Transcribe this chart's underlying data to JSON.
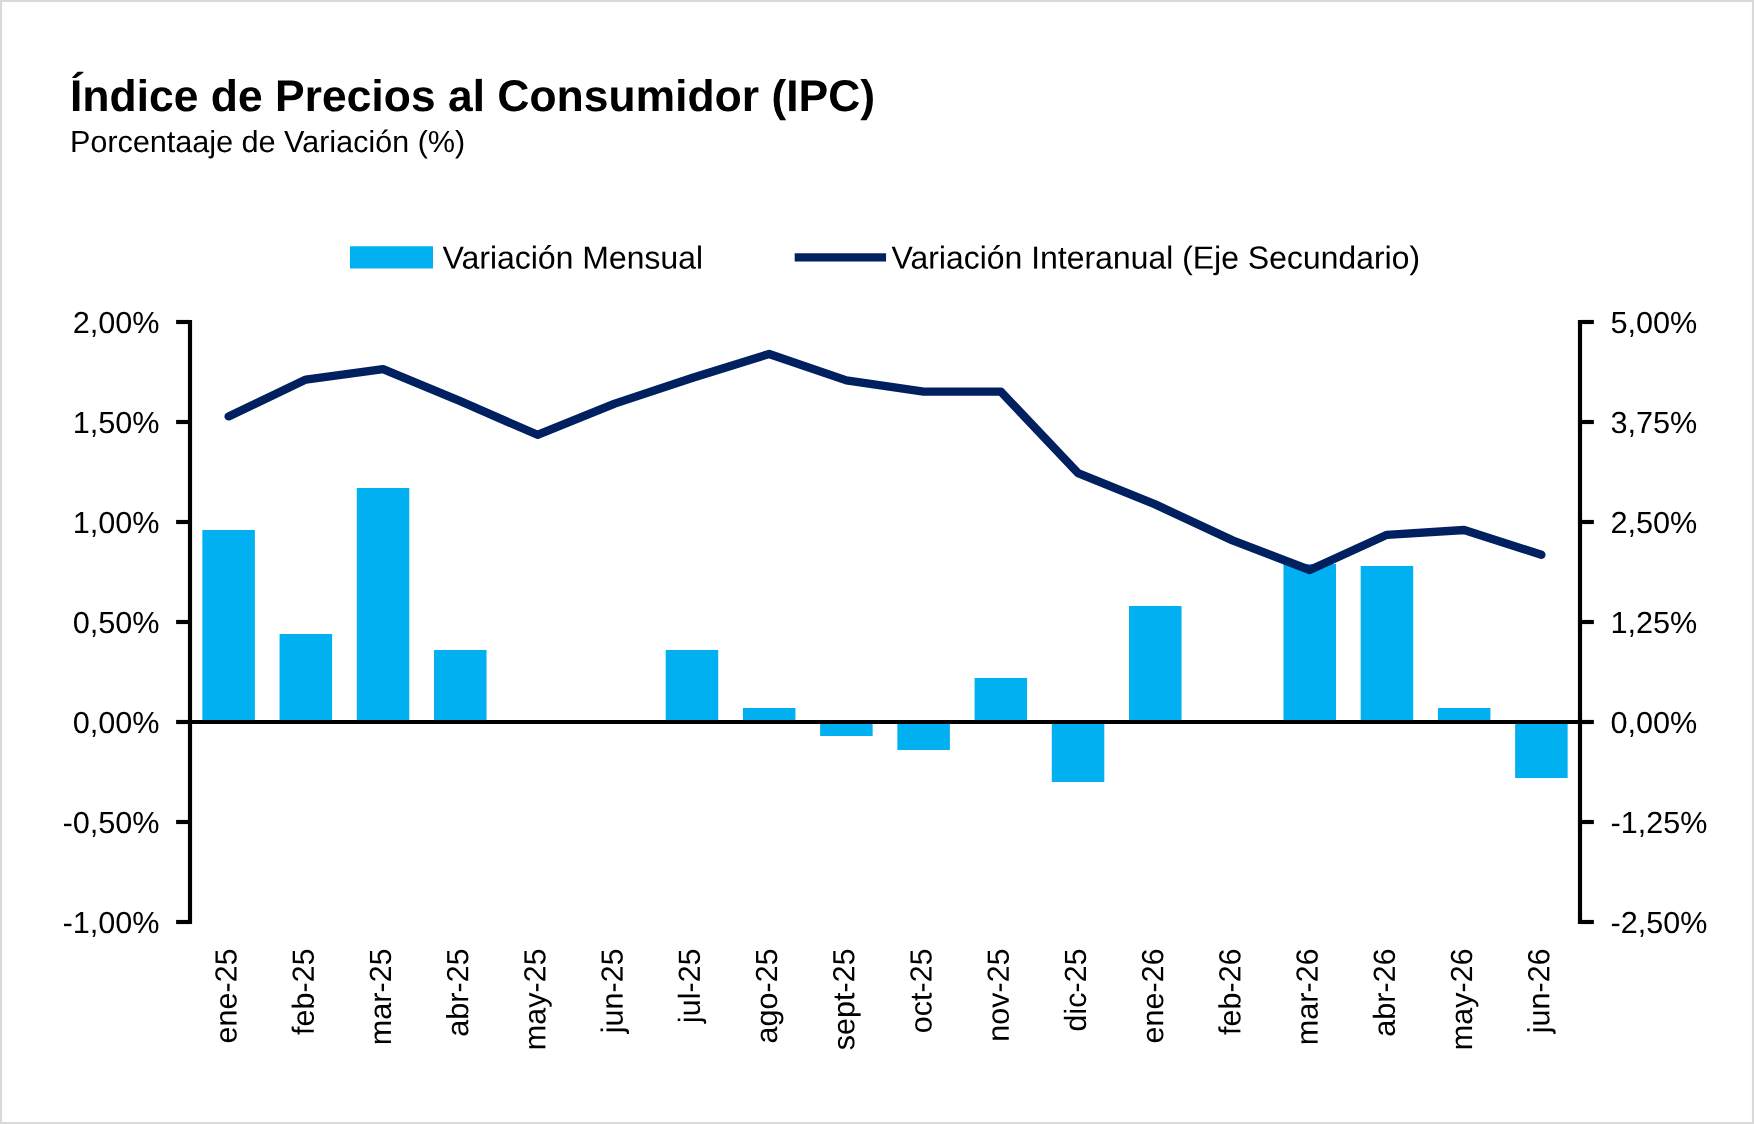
{
  "chart_data": {
    "type": "bar",
    "title": "Índice de Precios al Consumidor (IPC)",
    "subtitle": "Porcentaaje de Variación (%)",
    "categories": [
      "ene-25",
      "feb-25",
      "mar-25",
      "abr-25",
      "may-25",
      "jun-25",
      "jul-25",
      "ago-25",
      "sept-25",
      "oct-25",
      "nov-25",
      "dic-25",
      "ene-26",
      "feb-26",
      "mar-26",
      "abr-26",
      "may-26",
      "jun-26"
    ],
    "series": [
      {
        "name": "Variación Mensual",
        "color": "#00b0f0",
        "values": [
          0.96,
          0.44,
          1.17,
          0.36,
          0,
          0,
          0.36,
          0.07,
          -0.07,
          -0.14,
          0.22,
          -0.3,
          0.58,
          0,
          0.79,
          0.78,
          0.07,
          -0.28
        ]
      },
      {
        "name": "Variación Interanual (Eje Secundario)",
        "type": "line",
        "axis": "y2",
        "color": "#002060",
        "values": [
          3.82,
          4.28,
          4.41,
          4.01,
          3.59,
          3.98,
          4.3,
          4.6,
          4.27,
          4.13,
          4.13,
          3.11,
          2.72,
          2.27,
          1.9,
          2.34,
          2.4,
          2.09
        ]
      }
    ],
    "ylim": [
      -1,
      2
    ],
    "yticks": [
      {
        "value": -1,
        "label": "-1,00%"
      },
      {
        "value": -0.5,
        "label": "-0,50%"
      },
      {
        "value": 0,
        "label": "0,00%"
      },
      {
        "value": 0.5,
        "label": "0,50%"
      },
      {
        "value": 1,
        "label": "1,00%"
      },
      {
        "value": 1.5,
        "label": "1,50%"
      },
      {
        "value": 2,
        "label": "2,00%"
      }
    ],
    "y2lim": [
      -2.5,
      5
    ],
    "y2ticks": [
      {
        "value": -2.5,
        "label": "-2,50%"
      },
      {
        "value": -1.25,
        "label": "-1,25%"
      },
      {
        "value": 0,
        "label": "0,00%"
      },
      {
        "value": 1.25,
        "label": "1,25%"
      },
      {
        "value": 2.5,
        "label": "2,50%"
      },
      {
        "value": 3.75,
        "label": "3,75%"
      },
      {
        "value": 5,
        "label": "5,00%"
      }
    ],
    "legend": "top"
  }
}
